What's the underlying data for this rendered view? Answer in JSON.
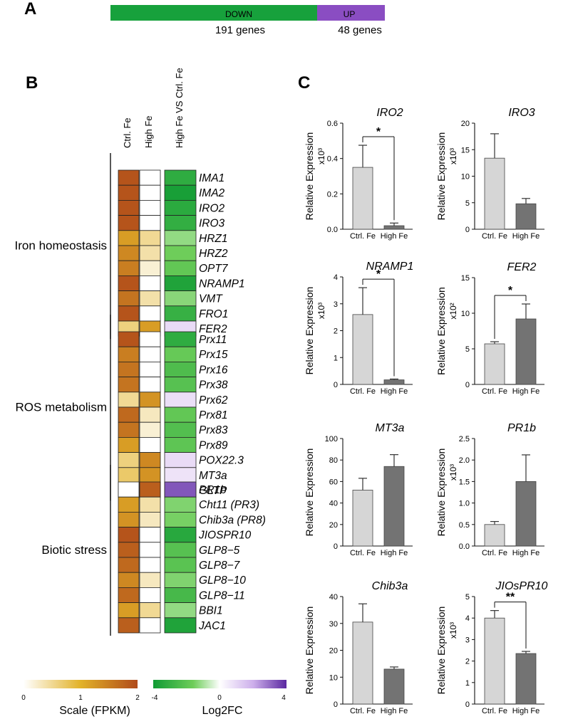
{
  "panel_labels": {
    "a": "A",
    "b": "B",
    "c": "C"
  },
  "panel_a": {
    "down_label": "DOWN",
    "up_label": "UP",
    "down_count": "191 genes",
    "up_count": "48 genes",
    "down_color": "#17a13c",
    "up_color": "#8a4dc2"
  },
  "heatmap": {
    "columns": [
      "Ctrl. Fe",
      "High Fe",
      "High Fe VS Ctrl. Fe"
    ],
    "groups": [
      {
        "name": "Iron homeostasis",
        "rows": [
          {
            "gene": "IMA1",
            "ctrl": 1.9,
            "high": 0.0,
            "lfc": -3.2
          },
          {
            "gene": "IMA2",
            "ctrl": 1.9,
            "high": 0.0,
            "lfc": -3.8
          },
          {
            "gene": "IRO2",
            "ctrl": 1.9,
            "high": 0.0,
            "lfc": -3.3
          },
          {
            "gene": "IRO3",
            "ctrl": 1.9,
            "high": 0.0,
            "lfc": -3.1
          },
          {
            "gene": "HRZ1",
            "ctrl": 1.2,
            "high": 0.5,
            "lfc": -1.2
          },
          {
            "gene": "HRZ2",
            "ctrl": 1.4,
            "high": 0.4,
            "lfc": -1.6
          },
          {
            "gene": "OPT7",
            "ctrl": 1.5,
            "high": 0.2,
            "lfc": -1.9
          },
          {
            "gene": "NRAMP1",
            "ctrl": 1.9,
            "high": 0.0,
            "lfc": -3.6
          },
          {
            "gene": "VMT",
            "ctrl": 1.6,
            "high": 0.4,
            "lfc": -1.3
          },
          {
            "gene": "FRO1",
            "ctrl": 1.9,
            "high": 0.0,
            "lfc": -3.0
          },
          {
            "gene": "FER2",
            "ctrl": 0.6,
            "high": 1.2,
            "lfc": 0.9
          }
        ]
      },
      {
        "name": "ROS metabolism",
        "rows": [
          {
            "gene": "Prx11",
            "ctrl": 1.9,
            "high": 0.0,
            "lfc": -3.2
          },
          {
            "gene": "Prx15",
            "ctrl": 1.5,
            "high": 0.0,
            "lfc": -1.8
          },
          {
            "gene": "Prx16",
            "ctrl": 1.6,
            "high": 0.0,
            "lfc": -2.4
          },
          {
            "gene": "Prx38",
            "ctrl": 1.6,
            "high": 0.0,
            "lfc": -2.2
          },
          {
            "gene": "Prx62",
            "ctrl": 0.5,
            "high": 1.3,
            "lfc": 0.8
          },
          {
            "gene": "Prx81",
            "ctrl": 1.7,
            "high": 0.3,
            "lfc": -1.9
          },
          {
            "gene": "Prx83",
            "ctrl": 1.6,
            "high": 0.2,
            "lfc": -2.3
          },
          {
            "gene": "Prx89",
            "ctrl": 1.2,
            "high": 0.0,
            "lfc": -2.0
          },
          {
            "gene": "POX22.3",
            "ctrl": 0.6,
            "high": 1.4,
            "lfc": 0.9
          },
          {
            "gene": "MT3a",
            "ctrl": 0.7,
            "high": 1.3,
            "lfc": 0.7
          },
          {
            "gene": "GLTP",
            "ctrl": 0.0,
            "high": 1.4,
            "lfc": 1.6
          }
        ]
      },
      {
        "name": "Biotic stress",
        "rows": [
          {
            "gene": "PR1b",
            "ctrl": 0.0,
            "high": 1.8,
            "lfc": 3.3
          },
          {
            "gene": "Cht11 (PR3)",
            "ctrl": 1.2,
            "high": 0.4,
            "lfc": -1.4
          },
          {
            "gene": "Chib3a (PR8)",
            "ctrl": 1.3,
            "high": 0.3,
            "lfc": -1.5
          },
          {
            "gene": "JIOSPR10",
            "ctrl": 1.9,
            "high": 0.0,
            "lfc": -3.4
          },
          {
            "gene": "GLP8−5",
            "ctrl": 1.8,
            "high": 0.0,
            "lfc": -2.2
          },
          {
            "gene": "GLP8−7",
            "ctrl": 1.7,
            "high": 0.0,
            "lfc": -2.1
          },
          {
            "gene": "GLP8−10",
            "ctrl": 1.4,
            "high": 0.3,
            "lfc": -1.4
          },
          {
            "gene": "GLP8−11",
            "ctrl": 1.7,
            "high": 0.0,
            "lfc": -2.6
          },
          {
            "gene": "BBI1",
            "ctrl": 1.2,
            "high": 0.5,
            "lfc": -1.2
          },
          {
            "gene": "JAC1",
            "ctrl": 1.8,
            "high": 0.0,
            "lfc": -3.6
          }
        ]
      }
    ],
    "fpkm_scale": {
      "title": "Scale (FPKM)",
      "ticks": [
        "0",
        "1",
        "2"
      ],
      "min": 0,
      "max": 2
    },
    "lfc_scale": {
      "title": "Log2FC",
      "ticks": [
        "-4",
        "0",
        "4"
      ],
      "min": -4,
      "max": 4
    }
  },
  "bar_charts": {
    "ylabel": "Relative Expression",
    "light_color": "#d6d6d6",
    "dark_color": "#737373",
    "items": [
      {
        "gene": "IRO2",
        "multiplier": "x10³",
        "categories": [
          "Ctrl. Fe",
          "High Fe"
        ],
        "values": [
          0.35,
          0.02
        ],
        "errors": [
          0.125,
          0.015
        ],
        "ylim": [
          0,
          0.6
        ],
        "ticks": [
          "0.0",
          "0.2",
          "0.4",
          "0.6"
        ],
        "significance": "*"
      },
      {
        "gene": "IRO3",
        "multiplier": "x10³",
        "categories": [
          "Ctrl. Fe",
          "High Fe"
        ],
        "values": [
          13.4,
          4.8
        ],
        "errors": [
          4.6,
          1.0
        ],
        "ylim": [
          0,
          20
        ],
        "ticks": [
          "0",
          "5",
          "10",
          "15",
          "20"
        ],
        "significance": ""
      },
      {
        "gene": "NRAMP1",
        "multiplier": "x10³",
        "categories": [
          "Ctrl. Fe",
          "High Fe"
        ],
        "values": [
          2.6,
          0.17
        ],
        "errors": [
          1.0,
          0.03
        ],
        "ylim": [
          0,
          4
        ],
        "ticks": [
          "0",
          "1",
          "2",
          "3",
          "4"
        ],
        "significance": "*"
      },
      {
        "gene": "FER2",
        "multiplier": "x10²",
        "categories": [
          "Ctrl. Fe",
          "High Fe"
        ],
        "values": [
          5.7,
          9.2
        ],
        "errors": [
          0.3,
          2.1
        ],
        "ylim": [
          0,
          15
        ],
        "ticks": [
          "0",
          "5",
          "10",
          "15"
        ],
        "significance": "*"
      },
      {
        "gene": "MT3a",
        "multiplier": "",
        "categories": [
          "Ctrl. Fe",
          "High Fe"
        ],
        "values": [
          52,
          74
        ],
        "errors": [
          11,
          11
        ],
        "ylim": [
          0,
          100
        ],
        "ticks": [
          "0",
          "20",
          "40",
          "60",
          "80",
          "100"
        ],
        "significance": ""
      },
      {
        "gene": "PR1b",
        "multiplier": "x10³",
        "categories": [
          "Ctrl. Fe",
          "High Fe"
        ],
        "values": [
          0.5,
          1.5
        ],
        "errors": [
          0.07,
          0.62
        ],
        "ylim": [
          0,
          2.5
        ],
        "ticks": [
          "0.0",
          "0.5",
          "1.0",
          "1.5",
          "2.0",
          "2.5"
        ],
        "significance": ""
      },
      {
        "gene": "Chib3a",
        "multiplier": "",
        "categories": [
          "Ctrl. Fe",
          "High Fe"
        ],
        "values": [
          30.5,
          13
        ],
        "errors": [
          6.8,
          0.8
        ],
        "ylim": [
          0,
          40
        ],
        "ticks": [
          "0",
          "10",
          "20",
          "30",
          "40"
        ],
        "significance": ""
      },
      {
        "gene": "JIOsPR10",
        "multiplier": "x10³",
        "categories": [
          "Ctrl. Fe",
          "High Fe"
        ],
        "values": [
          4.0,
          2.35
        ],
        "errors": [
          0.35,
          0.1
        ],
        "ylim": [
          0,
          5
        ],
        "ticks": [
          "0",
          "1",
          "2",
          "3",
          "4",
          "5"
        ],
        "significance": "**"
      }
    ]
  }
}
